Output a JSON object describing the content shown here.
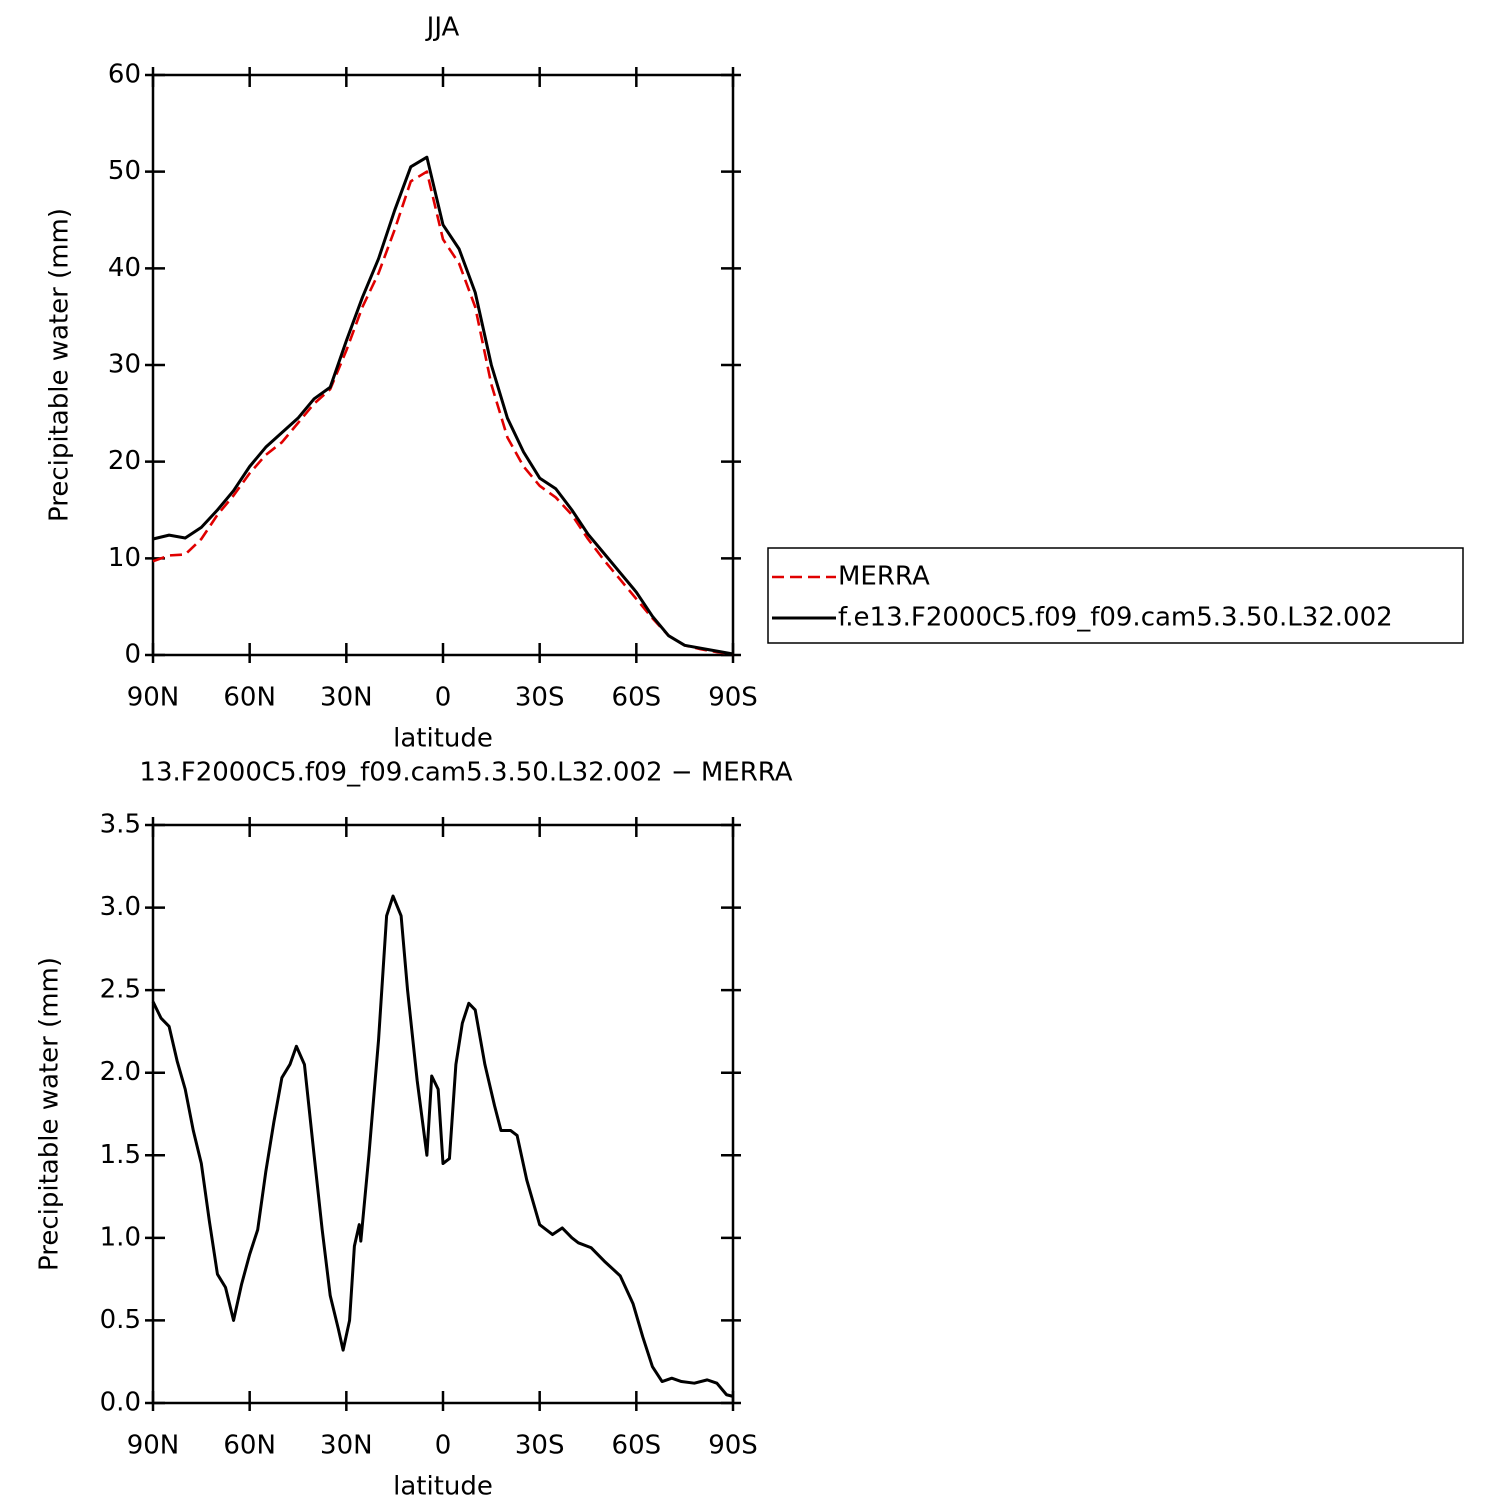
{
  "chart_data": [
    {
      "type": "line",
      "title": "JJA",
      "xlabel": "latitude",
      "ylabel": "Precipitable water (mm)",
      "x": [
        90,
        85,
        80,
        75,
        70,
        65,
        60,
        55,
        50,
        45,
        40,
        35,
        30,
        25,
        20,
        15,
        10,
        5,
        0,
        -5,
        -10,
        -15,
        -20,
        -25,
        -30,
        -35,
        -40,
        -45,
        -50,
        -55,
        -60,
        -65,
        -70,
        -75,
        -80,
        -85,
        -90
      ],
      "xlim": [
        90,
        -90
      ],
      "xticks": [
        {
          "value": 90,
          "label": "90N"
        },
        {
          "value": 60,
          "label": "60N"
        },
        {
          "value": 30,
          "label": "30N"
        },
        0,
        {
          "value": -30,
          "label": "30S"
        },
        {
          "value": -60,
          "label": "60S"
        },
        {
          "value": -90,
          "label": "90S"
        }
      ],
      "ylim": [
        0,
        60
      ],
      "yticks": [
        0,
        10,
        20,
        30,
        40,
        50,
        60
      ],
      "legend": "right",
      "series": [
        {
          "name": "MERRA",
          "color": "#e00000",
          "linestyle": "dashed",
          "values": [
            9.7,
            10.3,
            10.4,
            12,
            14.5,
            16.5,
            18.8,
            20.7,
            22,
            24,
            26,
            27.5,
            31.5,
            36,
            39.5,
            44,
            49,
            50,
            43,
            40.5,
            36,
            28,
            22.5,
            19.5,
            17.5,
            16.3,
            14.5,
            12,
            9.8,
            7.8,
            5.8,
            3.8,
            2,
            1,
            0.6,
            0.3,
            0.1
          ]
        },
        {
          "name": "f.e13.F2000C5.f09_f09.cam5.3.50.L32.002",
          "color": "#000000",
          "linestyle": "solid",
          "values": [
            12,
            12.4,
            12.1,
            13.2,
            15,
            17,
            19.5,
            21.5,
            23,
            24.5,
            26.5,
            27.7,
            32.5,
            37,
            41,
            46,
            50.5,
            51.5,
            44.5,
            42,
            37.5,
            30,
            24.5,
            21,
            18.3,
            17.2,
            15,
            12.5,
            10.5,
            8.5,
            6.5,
            4,
            2,
            1,
            0.7,
            0.4,
            0.1
          ]
        }
      ]
    },
    {
      "type": "line",
      "title": "13.F2000C5.f09_f09.cam5.3.50.L32.002 − MERRA",
      "xlabel": "latitude",
      "ylabel": "Precipitable water (mm)",
      "x": [
        90,
        87.5,
        85,
        82.5,
        80,
        77.5,
        75,
        72.5,
        70,
        67.5,
        65,
        62.5,
        60,
        57.5,
        55,
        52.5,
        50,
        47.5,
        45.5,
        43,
        40,
        37.5,
        35,
        32.5,
        31,
        29,
        27.5,
        26,
        25.5,
        23,
        20,
        17.5,
        15.5,
        13,
        11,
        8,
        5,
        3.5,
        1.5,
        0,
        -2,
        -4,
        -6,
        -8,
        -10,
        -13,
        -16,
        -18,
        -21,
        -23,
        -26,
        -30,
        -34,
        -37,
        -40,
        -42,
        -46,
        -50,
        -55,
        -59,
        -62,
        -65,
        -68,
        -71,
        -74,
        -78,
        -82,
        -85,
        -88,
        -90
      ],
      "xlim": [
        90,
        -90
      ],
      "xticks": [
        {
          "value": 90,
          "label": "90N"
        },
        {
          "value": 60,
          "label": "60N"
        },
        {
          "value": 30,
          "label": "30N"
        },
        0,
        {
          "value": -30,
          "label": "30S"
        },
        {
          "value": -60,
          "label": "60S"
        },
        {
          "value": -90,
          "label": "90S"
        }
      ],
      "ylim": [
        0,
        3.5
      ],
      "yticks": [
        {
          "value": 0,
          "label": "0.0"
        },
        0.5,
        {
          "value": 1,
          "label": "1.0"
        },
        1.5,
        {
          "value": 2,
          "label": "2.0"
        },
        2.5,
        {
          "value": 3,
          "label": "3.0"
        },
        3.5
      ],
      "series": [
        {
          "color": "#000000",
          "linestyle": "solid",
          "values": [
            2.43,
            2.33,
            2.28,
            2.07,
            1.9,
            1.65,
            1.45,
            1.1,
            0.78,
            0.7,
            0.5,
            0.72,
            0.9,
            1.05,
            1.4,
            1.7,
            1.97,
            2.05,
            2.16,
            2.05,
            1.5,
            1.05,
            0.65,
            0.45,
            0.32,
            0.5,
            0.95,
            1.08,
            0.98,
            1.5,
            2.2,
            2.95,
            3.07,
            2.95,
            2.5,
            1.95,
            1.5,
            1.98,
            1.9,
            1.45,
            1.48,
            2.05,
            2.3,
            2.42,
            2.38,
            2.05,
            1.8,
            1.65,
            1.65,
            1.62,
            1.35,
            1.08,
            1.02,
            1.06,
            1.0,
            0.97,
            0.94,
            0.86,
            0.77,
            0.6,
            0.4,
            0.22,
            0.13,
            0.15,
            0.13,
            0.12,
            0.14,
            0.12,
            0.05,
            0.04
          ]
        }
      ]
    }
  ]
}
